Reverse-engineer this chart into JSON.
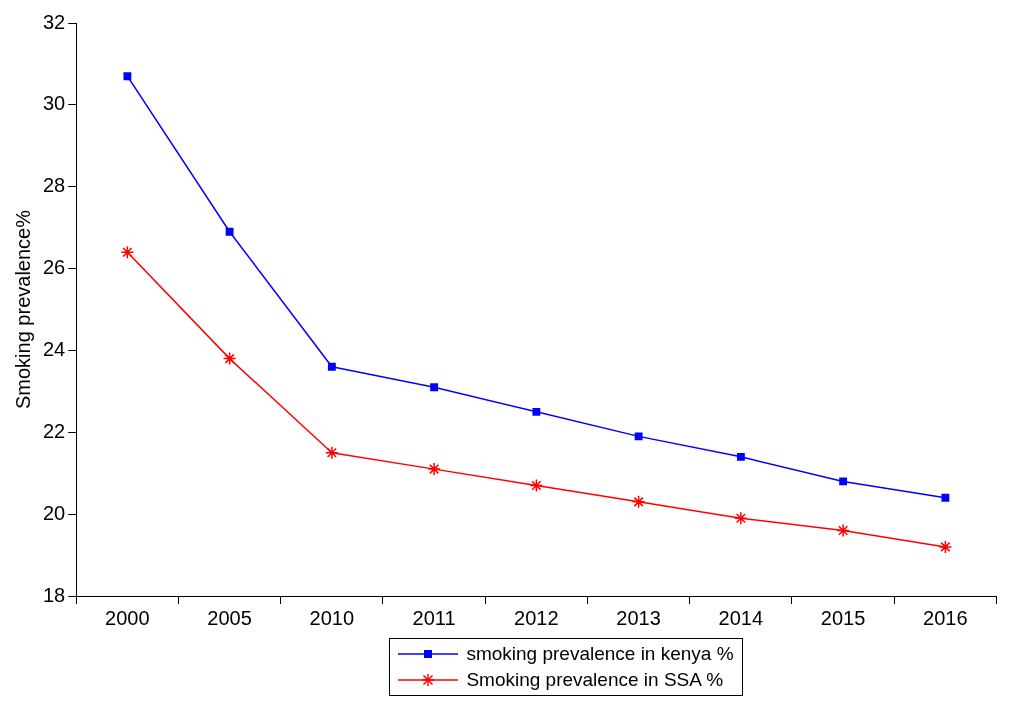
{
  "chart_data": {
    "type": "line",
    "ylabel": "Smoking prevalence%",
    "categories": [
      "2000",
      "2005",
      "2010",
      "2011",
      "2012",
      "2013",
      "2014",
      "2015",
      "2016"
    ],
    "series": [
      {
        "name": "smoking prevalence in kenya %",
        "color": "#0000ff",
        "marker": "square",
        "values": [
          30.7,
          26.9,
          23.6,
          23.1,
          22.5,
          21.9,
          21.4,
          20.8,
          20.4
        ]
      },
      {
        "name": "Smoking prevalence in SSA %",
        "color": "#ff0000",
        "marker": "cross",
        "values": [
          26.4,
          23.8,
          21.5,
          21.1,
          20.7,
          20.3,
          19.9,
          19.6,
          19.2
        ]
      }
    ],
    "ylim": [
      18,
      32
    ],
    "yticks": [
      18,
      20,
      22,
      24,
      26,
      28,
      30,
      32
    ],
    "grid": false,
    "legend": "bottom",
    "line_style": "solid"
  }
}
